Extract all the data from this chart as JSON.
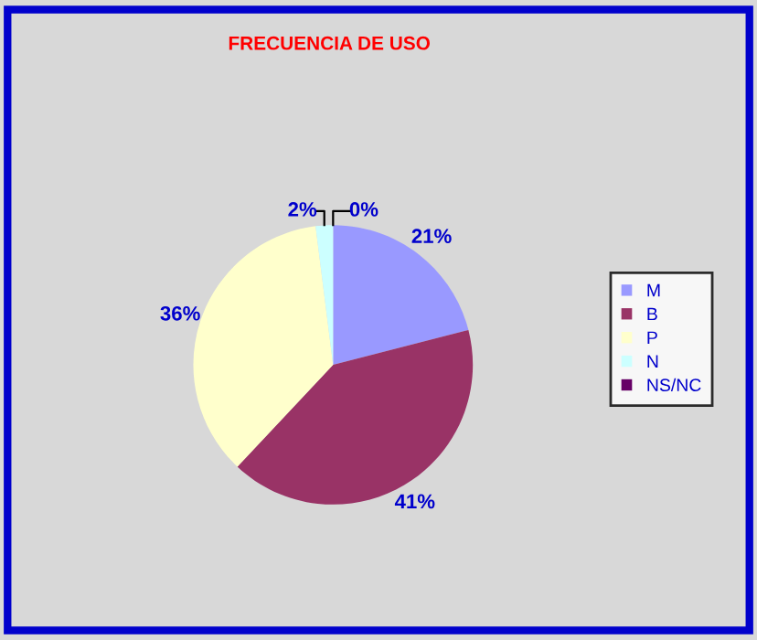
{
  "chart_data": {
    "type": "pie",
    "title": "FRECUENCIA DE USO",
    "categories": [
      "M",
      "B",
      "P",
      "N",
      "NS/NC"
    ],
    "values": [
      21,
      41,
      36,
      2,
      0
    ],
    "colors": [
      "#9999ff",
      "#993366",
      "#ffffcc",
      "#ccffff",
      "#660066"
    ],
    "value_labels": [
      "21%",
      "41%",
      "36%",
      "2%",
      "0%"
    ],
    "legend": "right"
  }
}
